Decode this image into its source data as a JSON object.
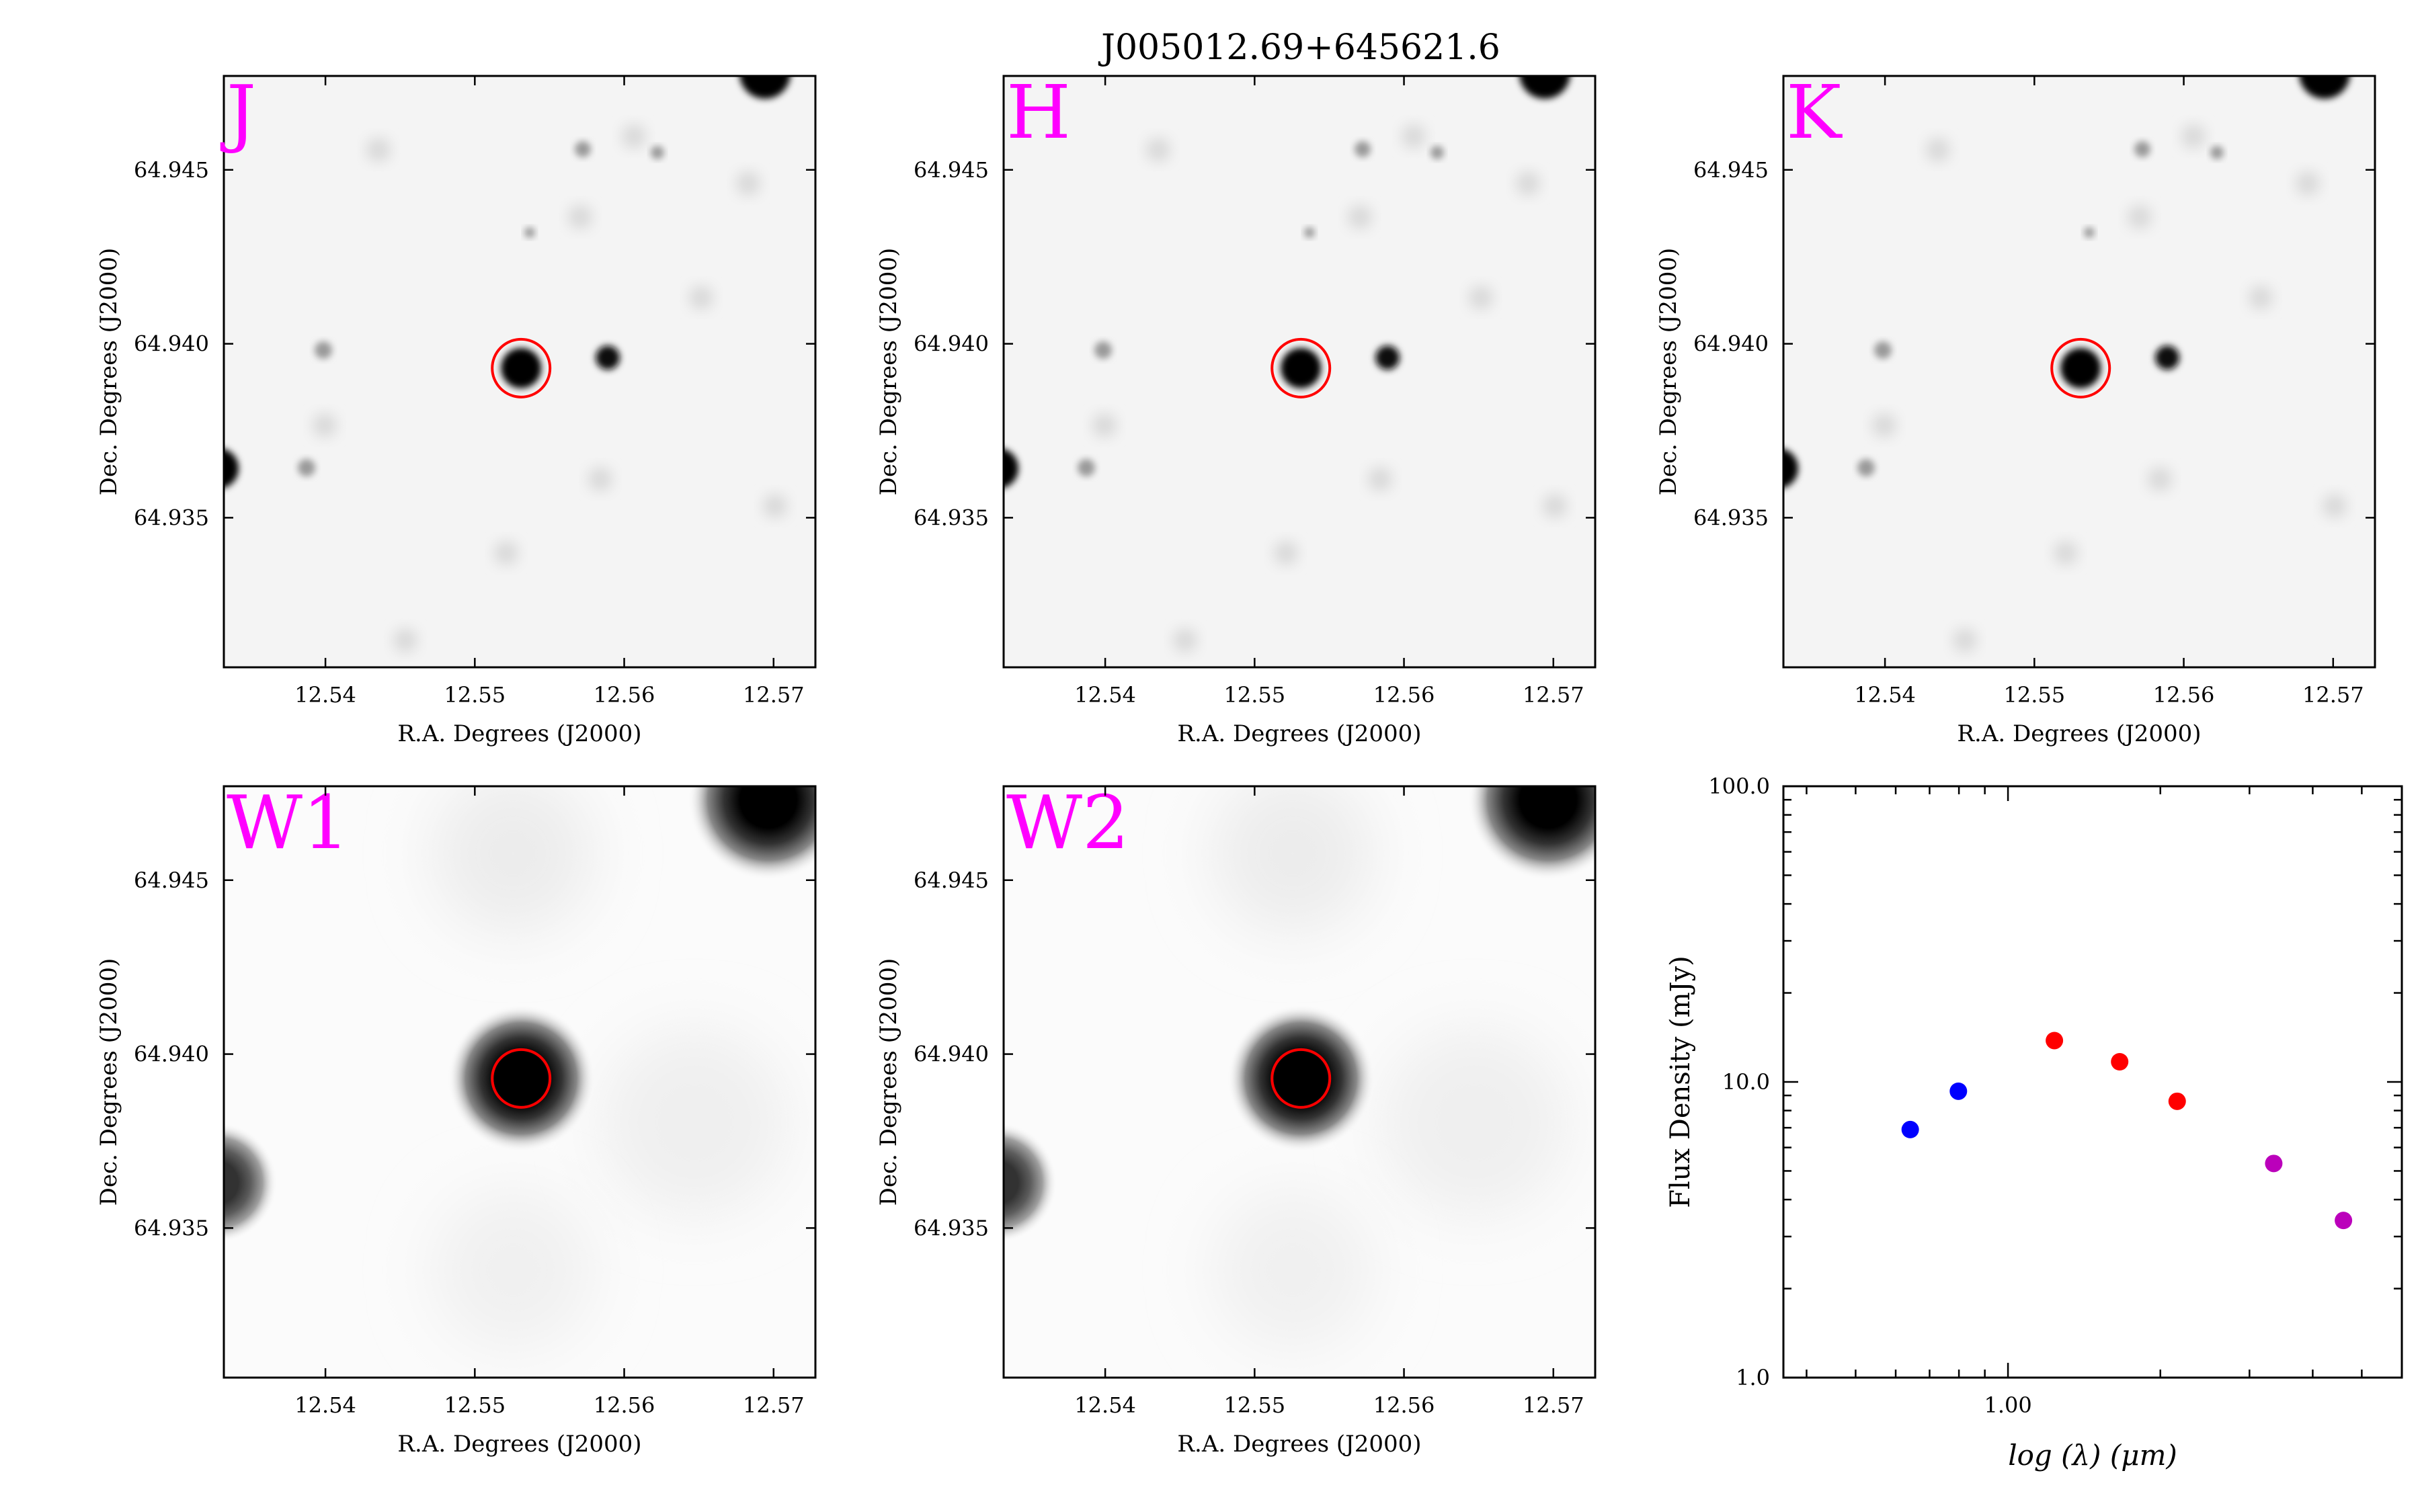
{
  "figure_title": "J005012.69+645621.6",
  "image_panels": [
    {
      "band": "J"
    },
    {
      "band": "H"
    },
    {
      "band": "K"
    },
    {
      "band": "W1"
    },
    {
      "band": "W2"
    }
  ],
  "image_axes": {
    "xlabel": "R.A. Degrees (J2000)",
    "ylabel": "Dec. Degrees (J2000)",
    "x_ticks": [
      "12.54",
      "12.55",
      "12.56",
      "12.57"
    ],
    "y_ticks": [
      "64.945",
      "64.940",
      "64.935"
    ]
  },
  "colors": {
    "band_label": "#ff00ff",
    "aperture_circle": "#ff0000",
    "nir_points": "#ff0000",
    "optical_points": "#0000ff",
    "wise_points": "#bb00bb"
  },
  "chart_data": {
    "type": "scatter",
    "xlabel": "log (λ) (μm)",
    "ylabel": "Flux Density (mJy)",
    "x_scale": "log",
    "y_scale": "log",
    "xlim": [
      0.36,
      6.0
    ],
    "ylim": [
      1.0,
      100.0
    ],
    "x_ticks": [
      "1.00"
    ],
    "y_ticks": [
      "1.0",
      "10.0",
      "100.0"
    ],
    "series": [
      {
        "color": "#0000ff",
        "x": [
          0.641,
          0.798
        ],
        "y": [
          6.9,
          9.3
        ]
      },
      {
        "color": "#ff0000",
        "x": [
          1.235,
          1.662,
          2.159
        ],
        "y": [
          13.8,
          11.7,
          8.6
        ]
      },
      {
        "color": "#bb00bb",
        "x": [
          3.35,
          4.6
        ],
        "y": [
          5.3,
          3.4
        ]
      }
    ]
  }
}
